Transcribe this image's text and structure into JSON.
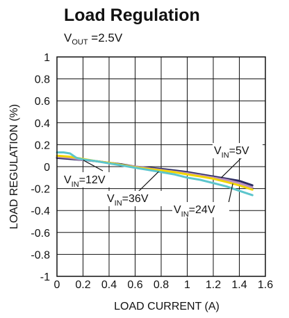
{
  "chart_data": {
    "type": "line",
    "title": "Load Regulation",
    "subtitle": {
      "symbol": "V",
      "subscript": "OUT",
      "text": " =2.5V"
    },
    "xlabel": "LOAD CURRENT (A)",
    "ylabel": "LOAD REGULATION (%)",
    "xlim": [
      0,
      1.6
    ],
    "ylim": [
      -1,
      1
    ],
    "xticks": [
      "0",
      "0.2",
      "0.4",
      "0.6",
      "0.8",
      "1",
      "1.2",
      "1.4",
      "1.6"
    ],
    "yticks": [
      "1",
      "0.8",
      "0.6",
      "0.4",
      "0.2",
      "0",
      "-0.2",
      "-0.4",
      "-0.6",
      "-0.8",
      "-1"
    ],
    "grid": true,
    "series": [
      {
        "name": "5V",
        "color": "#2b2c63",
        "x": [
          0,
          0.1,
          0.2,
          0.3,
          0.4,
          0.5,
          0.6,
          0.7,
          0.8,
          0.9,
          1.0,
          1.1,
          1.2,
          1.3,
          1.4,
          1.5
        ],
        "y": [
          0.08,
          0.07,
          0.06,
          0.05,
          0.035,
          0.02,
          0.0,
          -0.01,
          -0.02,
          -0.035,
          -0.05,
          -0.07,
          -0.09,
          -0.11,
          -0.13,
          -0.17
        ]
      },
      {
        "name": "12V",
        "color": "#b98fbf",
        "x": [
          0,
          0.1,
          0.2,
          0.3,
          0.4,
          0.5,
          0.6,
          0.7,
          0.8,
          0.9,
          1.0,
          1.1,
          1.2,
          1.3,
          1.4,
          1.5
        ],
        "y": [
          0.09,
          0.08,
          0.06,
          0.05,
          0.035,
          0.015,
          0.0,
          -0.015,
          -0.03,
          -0.045,
          -0.06,
          -0.08,
          -0.1,
          -0.12,
          -0.15,
          -0.19
        ]
      },
      {
        "name": "24V",
        "color": "#f2d500",
        "x": [
          0,
          0.1,
          0.2,
          0.3,
          0.4,
          0.5,
          0.6,
          0.7,
          0.8,
          0.9,
          1.0,
          1.1,
          1.2,
          1.3,
          1.4,
          1.5
        ],
        "y": [
          0.1,
          0.09,
          0.07,
          0.05,
          0.035,
          0.015,
          -0.005,
          -0.02,
          -0.035,
          -0.05,
          -0.07,
          -0.09,
          -0.11,
          -0.14,
          -0.17,
          -0.21
        ]
      },
      {
        "name": "36V",
        "color": "#5cc5cc",
        "x": [
          0,
          0.05,
          0.1,
          0.15,
          0.2,
          0.3,
          0.4,
          0.5,
          0.6,
          0.7,
          0.8,
          0.9,
          1.0,
          1.1,
          1.2,
          1.3,
          1.4,
          1.5
        ],
        "y": [
          0.13,
          0.13,
          0.12,
          0.08,
          0.065,
          0.05,
          0.03,
          0.01,
          -0.01,
          -0.03,
          -0.05,
          -0.07,
          -0.1,
          -0.12,
          -0.15,
          -0.18,
          -0.22,
          -0.26
        ]
      }
    ],
    "annotations": [
      {
        "symbol": "V",
        "sub": "IN",
        "text": "=5V",
        "series": "5V"
      },
      {
        "symbol": "V",
        "sub": "IN",
        "text": "=12V",
        "series": "12V"
      },
      {
        "symbol": "V",
        "sub": "IN",
        "text": "=36V",
        "series": "36V"
      },
      {
        "symbol": "V",
        "sub": "IN",
        "text": "=24V",
        "series": "24V"
      }
    ]
  }
}
